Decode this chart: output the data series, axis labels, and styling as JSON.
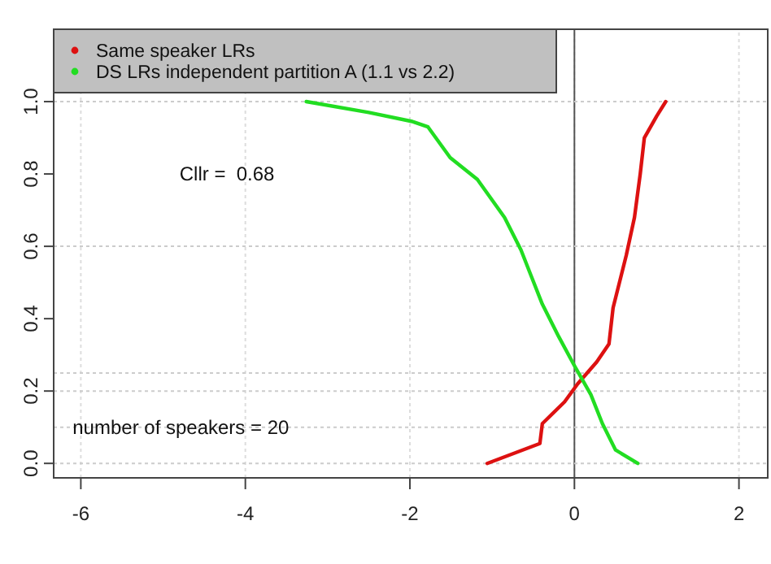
{
  "chart_data": {
    "type": "line",
    "series": [
      {
        "name": "Same speaker LRs",
        "color": "#dd1111",
        "x": [
          -1.06,
          -0.42,
          -0.39,
          -0.12,
          0.04,
          0.27,
          0.42,
          0.47,
          0.63,
          0.73,
          0.8,
          0.85,
          1.0,
          1.11
        ],
        "values": [
          0,
          0.055,
          0.11,
          0.17,
          0.22,
          0.28,
          0.33,
          0.43,
          0.575,
          0.68,
          0.8,
          0.9,
          0.96,
          1.0
        ]
      },
      {
        "name": "DS LRs independent partition A (1.1 vs 2.2)",
        "color": "#22dd22",
        "x": [
          -3.26,
          -2.5,
          -1.97,
          -1.78,
          -1.51,
          -1.18,
          -0.85,
          -0.65,
          -0.52,
          -0.39,
          -0.19,
          0.0,
          0.2,
          0.34,
          0.5,
          0.77
        ],
        "values": [
          1.0,
          0.97,
          0.945,
          0.93,
          0.845,
          0.785,
          0.68,
          0.59,
          0.515,
          0.44,
          0.35,
          0.27,
          0.19,
          0.11,
          0.037,
          0.0
        ]
      }
    ],
    "xlim": [
      -6.33,
      2.35
    ],
    "ylim": [
      -0.04,
      1.2
    ],
    "xticks": [
      -6,
      -4,
      -2,
      0,
      2
    ],
    "yticks": [
      {
        "value": 0,
        "label": "0.0"
      },
      0.2,
      0.4,
      0.6,
      0.8,
      {
        "value": 1,
        "label": "1.0"
      }
    ],
    "grid": "x",
    "marker": "none",
    "line_style": "solid",
    "legend": "top left",
    "ref_lines": [
      {
        "axis": "x",
        "value": 0,
        "color": "#555555",
        "line_style": "solid"
      },
      {
        "axis": "y",
        "value": 0,
        "color": "#cccccc",
        "line_style": "dotted"
      },
      {
        "axis": "y",
        "value": 0.1,
        "color": "#cccccc",
        "line_style": "dotted"
      },
      {
        "axis": "y",
        "value": 0.2,
        "color": "#cccccc",
        "line_style": "dotted"
      },
      {
        "axis": "y",
        "value": 0.25,
        "color": "#cccccc",
        "line_style": "dotted"
      },
      {
        "axis": "y",
        "value": 0.6,
        "color": "#cccccc",
        "line_style": "dotted"
      },
      {
        "axis": "y",
        "value": 1.0,
        "color": "#cccccc",
        "line_style": "dotted"
      }
    ],
    "annotations": [
      "Cllr =  0.68",
      "number of speakers = 20"
    ]
  }
}
